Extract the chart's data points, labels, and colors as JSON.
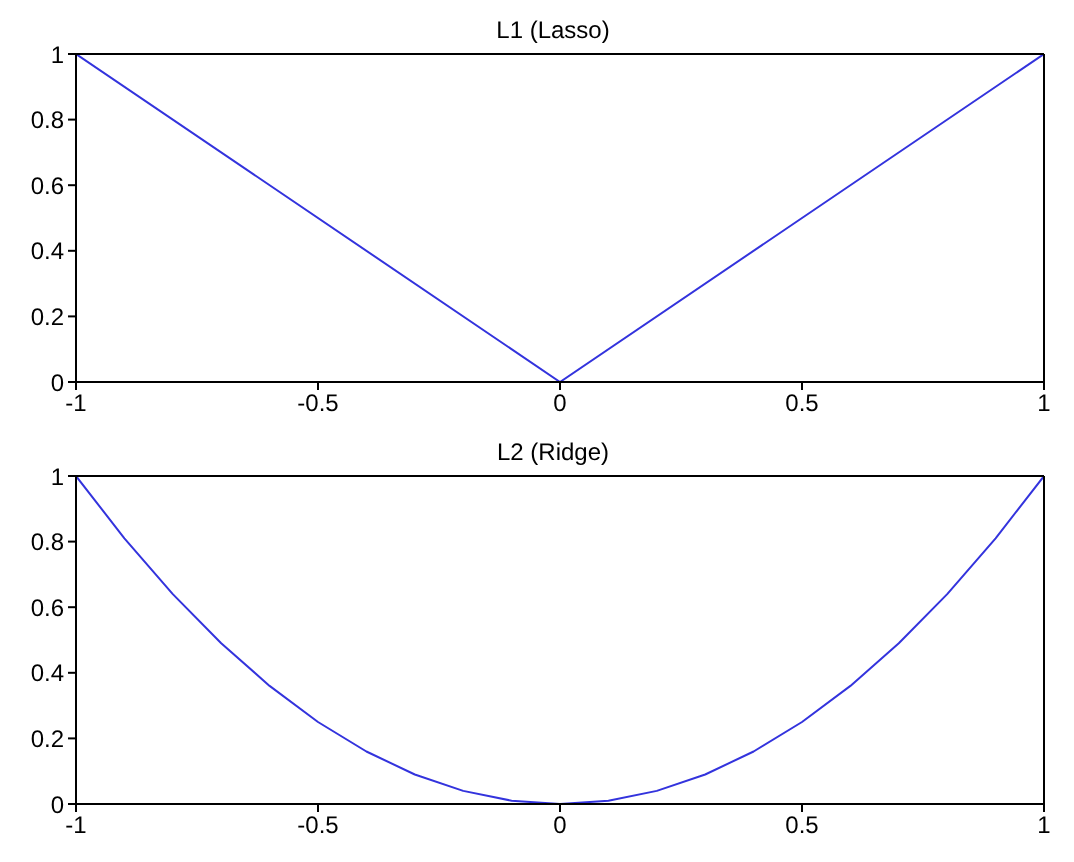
{
  "chart_data": [
    {
      "type": "line",
      "title": "L1 (Lasso)",
      "x": [
        -1,
        0,
        1
      ],
      "series": [
        {
          "color": "#3333dd",
          "values": [
            1,
            0,
            1
          ]
        }
      ],
      "xlim": [
        -1,
        1
      ],
      "ylim": [
        0,
        1
      ],
      "xticks": [
        -1,
        -0.5,
        0,
        0.5,
        1
      ],
      "yticks": [
        0,
        0.2,
        0.4,
        0.6,
        0.8,
        1
      ]
    },
    {
      "type": "line",
      "title": "L2 (Ridge)",
      "x": [
        -1,
        -0.9,
        -0.8,
        -0.7,
        -0.6,
        -0.5,
        -0.4,
        -0.3,
        -0.2,
        -0.1,
        0,
        0.1,
        0.2,
        0.3,
        0.4,
        0.5,
        0.6,
        0.7,
        0.8,
        0.9,
        1
      ],
      "series": [
        {
          "color": "#3333dd",
          "values": [
            1,
            0.81,
            0.64,
            0.49,
            0.36,
            0.25,
            0.16,
            0.09,
            0.04,
            0.01,
            0,
            0.01,
            0.04,
            0.09,
            0.16,
            0.25,
            0.36,
            0.49,
            0.64,
            0.81,
            1
          ]
        }
      ],
      "xlim": [
        -1,
        1
      ],
      "ylim": [
        0,
        1
      ],
      "xticks": [
        -1,
        -0.5,
        0,
        0.5,
        1
      ],
      "yticks": [
        0,
        0.2,
        0.4,
        0.6,
        0.8,
        1
      ]
    }
  ]
}
